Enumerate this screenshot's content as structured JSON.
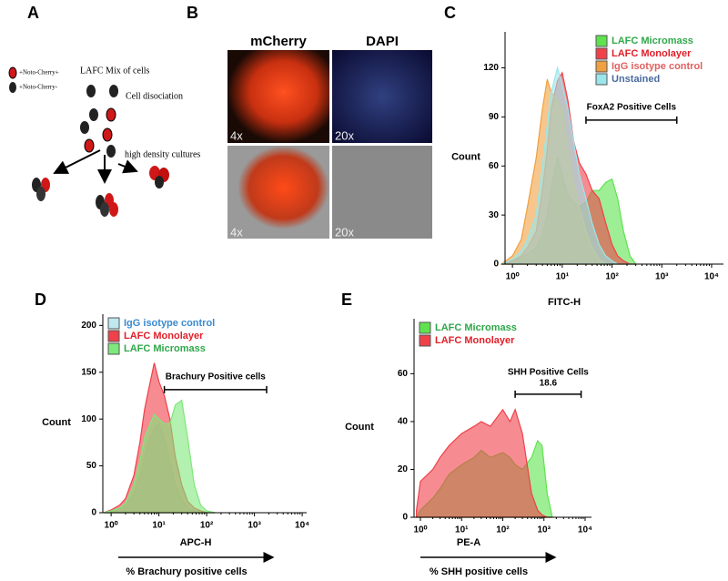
{
  "panel_labels": [
    "A",
    "B",
    "C",
    "D",
    "E"
  ],
  "schematic": {
    "title": "LAFC Mix of cells",
    "step1": "Cell disociation",
    "step2": "high density cultures",
    "legend": [
      "+Noto-Cherry+",
      "+Noto-Cherry-"
    ]
  },
  "microscopy": {
    "columns": [
      "mCherry",
      "DAPI"
    ],
    "magnifications": [
      "4x",
      "20x",
      "4x",
      "20x"
    ]
  },
  "chart_data": [
    {
      "type": "area",
      "xscale": "log",
      "ylabel": "Count",
      "xlabel": "FITC-H",
      "xlim": [
        0.71,
        17300
      ],
      "ylim": [
        0,
        142
      ],
      "yticks": [
        0,
        30,
        60,
        90,
        120
      ],
      "xticks": [
        {
          "value": 1,
          "label": "10⁰"
        },
        {
          "value": 10,
          "label": "10¹"
        },
        {
          "value": 100,
          "label": "10²"
        },
        {
          "value": 1000,
          "label": "10³"
        },
        {
          "value": 10000,
          "label": "10⁴"
        }
      ],
      "legend": "top-right",
      "gate": {
        "label": "FoxA2 Positive Cells",
        "range": [
          30,
          2000
        ]
      },
      "x": [
        0.6,
        1,
        1.5,
        2,
        3,
        4,
        5,
        6,
        8,
        10,
        13,
        17,
        22,
        30,
        40,
        55,
        75,
        100,
        130,
        170,
        230,
        300
      ],
      "series": [
        {
          "name": "LAFC Micromass",
          "color": "#5ee34e",
          "text_color": "#2fa84a",
          "values": [
            0,
            2,
            4,
            6,
            10,
            18,
            30,
            45,
            65,
            55,
            42,
            38,
            35,
            38,
            45,
            45,
            50,
            52,
            40,
            20,
            5,
            0
          ]
        },
        {
          "name": "LAFC Monolayer",
          "color": "#f0404a",
          "text_color": "#e0202a",
          "values": [
            0,
            2,
            5,
            10,
            20,
            45,
            70,
            95,
            112,
            117,
            100,
            75,
            62,
            55,
            45,
            40,
            25,
            12,
            5,
            2,
            0,
            0
          ]
        },
        {
          "name": "IgG isotype control",
          "color": "#f0a040",
          "text_color": "#e06060",
          "values": [
            0,
            5,
            15,
            35,
            65,
            95,
            113,
            105,
            100,
            95,
            70,
            50,
            35,
            20,
            10,
            3,
            0,
            0,
            0,
            0,
            0,
            0
          ]
        },
        {
          "name": "Unstained",
          "color": "#9ae6ea",
          "text_color": "#4a6aa0",
          "values": [
            0,
            3,
            8,
            15,
            30,
            60,
            85,
            105,
            120,
            110,
            95,
            75,
            55,
            40,
            25,
            12,
            5,
            2,
            0,
            0,
            0,
            0
          ]
        }
      ]
    },
    {
      "type": "area",
      "xscale": "log",
      "ylabel": "Count",
      "xlabel": "APC-H",
      "caption": "% Brachury positive cells",
      "xlim": [
        0.67,
        12400
      ],
      "ylim": [
        0,
        212
      ],
      "yticks": [
        0,
        50,
        100,
        150,
        200
      ],
      "xticks": [
        {
          "value": 1,
          "label": "10⁰"
        },
        {
          "value": 10,
          "label": "10¹"
        },
        {
          "value": 100,
          "label": "10²"
        },
        {
          "value": 1000,
          "label": "10³"
        },
        {
          "value": 10000,
          "label": "10⁴"
        }
      ],
      "legend": "top-left",
      "gate": {
        "label": "Brachury Positive cells",
        "range": [
          13,
          1800
        ]
      },
      "x": [
        0.7,
        1,
        1.5,
        2,
        3,
        4,
        5,
        6,
        8,
        10,
        13,
        17,
        22,
        30,
        40,
        55,
        75,
        100,
        150
      ],
      "series": [
        {
          "name": "IgG isotype control",
          "color": "#bfe9ef",
          "text_color": "#3a8ad0",
          "values": [
            0,
            2,
            4,
            8,
            20,
            40,
            60,
            75,
            90,
            95,
            80,
            55,
            30,
            15,
            5,
            2,
            0,
            0,
            0
          ]
        },
        {
          "name": "LAFC Monolayer",
          "color": "#f0404a",
          "text_color": "#e0202a",
          "values": [
            0,
            3,
            8,
            15,
            40,
            75,
            110,
            130,
            160,
            140,
            125,
            100,
            60,
            30,
            12,
            5,
            2,
            0,
            0
          ]
        },
        {
          "name": "LAFC Micromass",
          "color": "#7ee87a",
          "text_color": "#2fa84a",
          "values": [
            0,
            2,
            5,
            10,
            30,
            55,
            80,
            90,
            105,
            100,
            95,
            95,
            115,
            120,
            80,
            30,
            8,
            2,
            0
          ]
        }
      ]
    },
    {
      "type": "area",
      "xscale": "log",
      "ylabel": "Count",
      "xlabel": "PE-A",
      "caption": "% SHH positive cells",
      "xlim": [
        0.7,
        14300
      ],
      "ylim": [
        0,
        83
      ],
      "yticks": [
        0,
        20,
        40,
        60
      ],
      "xticks": [
        {
          "value": 1,
          "label": "10⁰"
        },
        {
          "value": 10,
          "label": "10¹"
        },
        {
          "value": 100,
          "label": "10²"
        },
        {
          "value": 1000,
          "label": "10³"
        },
        {
          "value": 10000,
          "label": "10⁴"
        }
      ],
      "legend": "top-left",
      "gate": {
        "label": "SHH Positive Cells",
        "value": 18.6,
        "range": [
          200,
          8000
        ]
      },
      "x": [
        0.8,
        1,
        2,
        3,
        5,
        10,
        20,
        30,
        50,
        100,
        150,
        200,
        300,
        500,
        700,
        900,
        1200,
        1600
      ],
      "series": [
        {
          "name": "LAFC Micromass",
          "color": "#5ee34e",
          "text_color": "#2fa84a",
          "values": [
            0,
            3,
            8,
            12,
            18,
            22,
            25,
            28,
            25,
            27,
            25,
            22,
            20,
            25,
            32,
            30,
            10,
            0
          ]
        },
        {
          "name": "LAFC Monolayer",
          "color": "#f0404a",
          "text_color": "#e0202a",
          "values": [
            3,
            15,
            20,
            25,
            30,
            35,
            38,
            40,
            38,
            45,
            40,
            45,
            35,
            10,
            3,
            1,
            0,
            0
          ]
        }
      ]
    }
  ]
}
